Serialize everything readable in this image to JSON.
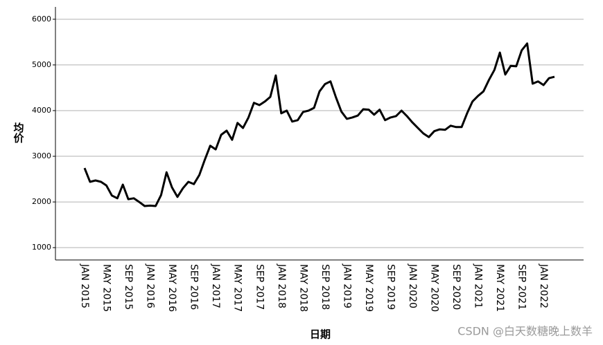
{
  "chart_data": {
    "type": "line",
    "xlabel": "日期",
    "ylabel": "均价",
    "watermark": "CSDN @白天数糖晚上数羊",
    "categories": [
      "JAN 2015",
      null,
      null,
      null,
      "MAY 2015",
      null,
      null,
      null,
      "SEP 2015",
      null,
      null,
      null,
      "JAN 2016",
      null,
      null,
      null,
      "MAY 2016",
      null,
      null,
      null,
      "SEP 2016",
      null,
      null,
      null,
      "JAN 2017",
      null,
      null,
      null,
      "MAY 2017",
      null,
      null,
      null,
      "SEP 2017",
      null,
      null,
      null,
      "JAN 2018",
      null,
      null,
      null,
      "MAY 2018",
      null,
      null,
      null,
      "SEP 2018",
      null,
      null,
      null,
      "JAN 2019",
      null,
      null,
      null,
      "MAY 2019",
      null,
      null,
      null,
      "SEP 2019",
      null,
      null,
      null,
      "JAN 2020",
      null,
      null,
      null,
      "MAY 2020",
      null,
      null,
      null,
      "SEP 2020",
      null,
      null,
      null,
      "JAN 2021",
      null,
      null,
      null,
      "MAY 2021",
      null,
      null,
      null,
      "SEP 2021",
      null,
      null,
      null,
      "JAN 2022",
      null,
      null
    ],
    "series": [
      {
        "color": "#000000",
        "values": [
          2742,
          2440,
          2470,
          2440,
          2360,
          2140,
          2080,
          2380,
          2060,
          2080,
          2000,
          1910,
          1920,
          1910,
          2150,
          2650,
          2320,
          2110,
          2300,
          2440,
          2390,
          2590,
          2920,
          3230,
          3150,
          3470,
          3560,
          3360,
          3730,
          3620,
          3850,
          4170,
          4120,
          4200,
          4300,
          4770,
          3940,
          4000,
          3760,
          3790,
          3970,
          4000,
          4060,
          4420,
          4580,
          4640,
          4290,
          3980,
          3820,
          3850,
          3890,
          4030,
          4020,
          3910,
          4020,
          3790,
          3850,
          3880,
          4000,
          3880,
          3740,
          3620,
          3500,
          3420,
          3550,
          3590,
          3580,
          3670,
          3640,
          3640,
          3940,
          4200,
          4320,
          4420,
          4670,
          4890,
          5270,
          4790,
          4980,
          4970,
          5320,
          5470,
          4590,
          4640,
          4560,
          4710,
          4740
        ]
      }
    ],
    "ylim": [
      730,
      6270
    ],
    "yticks": [
      1000,
      2000,
      3000,
      4000,
      5000,
      6000
    ],
    "grid": true
  }
}
